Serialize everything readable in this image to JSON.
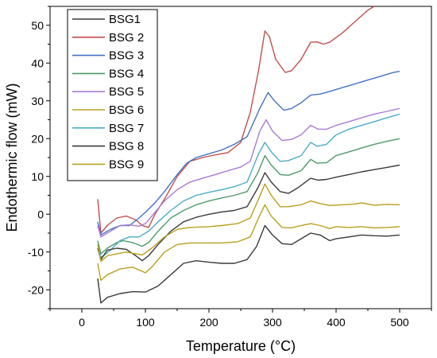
{
  "chart_data": {
    "type": "line",
    "title": "",
    "xlabel": "Temperature (°C)",
    "ylabel": "Endothermic flow (mW)",
    "xlim": [
      -50,
      550
    ],
    "ylim": [
      -25,
      55
    ],
    "xticks": [
      0,
      100,
      200,
      300,
      400,
      500
    ],
    "yticks": [
      -20,
      -10,
      0,
      10,
      20,
      30,
      40,
      50
    ],
    "grid": false,
    "legend_position": "top-left",
    "series": [
      {
        "name": "BSG1",
        "color": "#3a3a3a",
        "points": [
          [
            25,
            -17
          ],
          [
            30,
            -23.5
          ],
          [
            40,
            -22
          ],
          [
            60,
            -21
          ],
          [
            80,
            -20.5
          ],
          [
            100,
            -20.6
          ],
          [
            120,
            -19
          ],
          [
            140,
            -16
          ],
          [
            160,
            -13
          ],
          [
            180,
            -12.3
          ],
          [
            200,
            -12.7
          ],
          [
            220,
            -13
          ],
          [
            240,
            -13
          ],
          [
            260,
            -12
          ],
          [
            275,
            -8.5
          ],
          [
            288,
            -3
          ],
          [
            300,
            -5.5
          ],
          [
            315,
            -7.8
          ],
          [
            330,
            -8
          ],
          [
            345,
            -6.5
          ],
          [
            360,
            -5
          ],
          [
            375,
            -5.5
          ],
          [
            390,
            -7
          ],
          [
            400,
            -6.5
          ],
          [
            420,
            -6
          ],
          [
            440,
            -5.5
          ],
          [
            460,
            -5.7
          ],
          [
            480,
            -5.8
          ],
          [
            500,
            -5.5
          ]
        ]
      },
      {
        "name": "BSG 2",
        "color": "#c0504d",
        "points": [
          [
            25,
            4
          ],
          [
            30,
            -5
          ],
          [
            40,
            -3
          ],
          [
            55,
            -1
          ],
          [
            70,
            -0.5
          ],
          [
            85,
            -1.5
          ],
          [
            95,
            -3
          ],
          [
            105,
            -3.5
          ],
          [
            115,
            0
          ],
          [
            130,
            4
          ],
          [
            150,
            10
          ],
          [
            170,
            14
          ],
          [
            190,
            15
          ],
          [
            210,
            15.7
          ],
          [
            230,
            16.3
          ],
          [
            250,
            19
          ],
          [
            265,
            27
          ],
          [
            278,
            38
          ],
          [
            288,
            48.5
          ],
          [
            295,
            47
          ],
          [
            305,
            41
          ],
          [
            320,
            37.5
          ],
          [
            330,
            38
          ],
          [
            345,
            41
          ],
          [
            360,
            45.5
          ],
          [
            370,
            45.6
          ],
          [
            380,
            45
          ],
          [
            390,
            45.5
          ],
          [
            410,
            48
          ],
          [
            430,
            51
          ],
          [
            450,
            54
          ],
          [
            460,
            55
          ]
        ]
      },
      {
        "name": "BSG 3",
        "color": "#4472c4",
        "points": [
          [
            25,
            -2
          ],
          [
            30,
            -5.5
          ],
          [
            45,
            -4
          ],
          [
            60,
            -3
          ],
          [
            75,
            -3
          ],
          [
            90,
            -1
          ],
          [
            100,
            0.5
          ],
          [
            115,
            3
          ],
          [
            130,
            6
          ],
          [
            150,
            10.5
          ],
          [
            165,
            13.5
          ],
          [
            180,
            15
          ],
          [
            200,
            16
          ],
          [
            220,
            17
          ],
          [
            240,
            18.5
          ],
          [
            260,
            20.5
          ],
          [
            280,
            28
          ],
          [
            293,
            32.2
          ],
          [
            303,
            30
          ],
          [
            318,
            27.5
          ],
          [
            330,
            28
          ],
          [
            345,
            29.5
          ],
          [
            360,
            31.5
          ],
          [
            375,
            31.8
          ],
          [
            390,
            32.5
          ],
          [
            410,
            33.5
          ],
          [
            430,
            34.5
          ],
          [
            450,
            35.5
          ],
          [
            470,
            36.5
          ],
          [
            490,
            37.5
          ],
          [
            500,
            37.8
          ]
        ]
      },
      {
        "name": "BSG 4",
        "color": "#4e9a6a",
        "points": [
          [
            25,
            -7
          ],
          [
            30,
            -10.5
          ],
          [
            40,
            -9
          ],
          [
            55,
            -7.5
          ],
          [
            65,
            -7
          ],
          [
            80,
            -7.5
          ],
          [
            95,
            -8.5
          ],
          [
            105,
            -7.5
          ],
          [
            120,
            -4.5
          ],
          [
            140,
            -1
          ],
          [
            160,
            1
          ],
          [
            180,
            2.5
          ],
          [
            200,
            3.5
          ],
          [
            220,
            4.3
          ],
          [
            240,
            5
          ],
          [
            260,
            6
          ],
          [
            277,
            11
          ],
          [
            288,
            15.5
          ],
          [
            298,
            13
          ],
          [
            312,
            10.5
          ],
          [
            325,
            10.3
          ],
          [
            345,
            11.5
          ],
          [
            360,
            14.5
          ],
          [
            370,
            13.5
          ],
          [
            385,
            13.6
          ],
          [
            400,
            15.5
          ],
          [
            420,
            16.5
          ],
          [
            440,
            17.5
          ],
          [
            460,
            18.5
          ],
          [
            480,
            19.3
          ],
          [
            500,
            20
          ]
        ]
      },
      {
        "name": "BSG 5",
        "color": "#a97bd6",
        "points": [
          [
            25,
            -3
          ],
          [
            30,
            -6
          ],
          [
            45,
            -4.5
          ],
          [
            60,
            -3
          ],
          [
            75,
            -2.8
          ],
          [
            90,
            -3.2
          ],
          [
            100,
            -2.5
          ],
          [
            115,
            0.5
          ],
          [
            130,
            3.5
          ],
          [
            150,
            6.5
          ],
          [
            170,
            8.5
          ],
          [
            190,
            9.5
          ],
          [
            210,
            10.5
          ],
          [
            230,
            11.5
          ],
          [
            250,
            12.5
          ],
          [
            265,
            14
          ],
          [
            280,
            22
          ],
          [
            290,
            25
          ],
          [
            300,
            22
          ],
          [
            315,
            19.5
          ],
          [
            330,
            19.8
          ],
          [
            345,
            21
          ],
          [
            360,
            23.5
          ],
          [
            372,
            22.5
          ],
          [
            385,
            22.5
          ],
          [
            400,
            23.5
          ],
          [
            420,
            24.5
          ],
          [
            440,
            25.5
          ],
          [
            460,
            26.5
          ],
          [
            480,
            27.2
          ],
          [
            500,
            28
          ]
        ]
      },
      {
        "name": "BSG 6",
        "color": "#b8a020",
        "points": [
          [
            25,
            -13
          ],
          [
            30,
            -17.5
          ],
          [
            40,
            -16
          ],
          [
            60,
            -14.5
          ],
          [
            80,
            -14
          ],
          [
            100,
            -15.5
          ],
          [
            110,
            -14
          ],
          [
            130,
            -10
          ],
          [
            150,
            -8
          ],
          [
            170,
            -7.6
          ],
          [
            200,
            -7.6
          ],
          [
            220,
            -7.6
          ],
          [
            245,
            -7.3
          ],
          [
            265,
            -6
          ],
          [
            278,
            -1
          ],
          [
            288,
            2.5
          ],
          [
            298,
            -0.5
          ],
          [
            315,
            -3.5
          ],
          [
            330,
            -3.6
          ],
          [
            345,
            -3
          ],
          [
            360,
            -2.5
          ],
          [
            375,
            -3
          ],
          [
            390,
            -3.8
          ],
          [
            400,
            -3.3
          ],
          [
            420,
            -3.5
          ],
          [
            440,
            -3.3
          ],
          [
            460,
            -3.6
          ],
          [
            480,
            -3.5
          ],
          [
            500,
            -3.3
          ]
        ]
      },
      {
        "name": "BSG 7",
        "color": "#4bacc6",
        "points": [
          [
            25,
            -8
          ],
          [
            30,
            -11.5
          ],
          [
            45,
            -9.5
          ],
          [
            60,
            -7
          ],
          [
            75,
            -6
          ],
          [
            90,
            -6
          ],
          [
            105,
            -4.5
          ],
          [
            120,
            -2
          ],
          [
            140,
            1
          ],
          [
            160,
            3.5
          ],
          [
            180,
            5
          ],
          [
            200,
            5.8
          ],
          [
            220,
            6.5
          ],
          [
            240,
            7.3
          ],
          [
            260,
            8.5
          ],
          [
            278,
            16
          ],
          [
            288,
            19
          ],
          [
            298,
            16.5
          ],
          [
            312,
            14
          ],
          [
            325,
            14.2
          ],
          [
            345,
            15.5
          ],
          [
            360,
            19
          ],
          [
            370,
            18
          ],
          [
            385,
            18.5
          ],
          [
            400,
            21
          ],
          [
            420,
            22.5
          ],
          [
            440,
            23.5
          ],
          [
            460,
            24.5
          ],
          [
            480,
            25.5
          ],
          [
            500,
            26.5
          ]
        ]
      },
      {
        "name": "BSG 8",
        "color": "#3a3a3a",
        "points": [
          [
            25,
            -9
          ],
          [
            30,
            -12
          ],
          [
            40,
            -9.5
          ],
          [
            55,
            -9
          ],
          [
            70,
            -9.3
          ],
          [
            85,
            -11
          ],
          [
            95,
            -12.3
          ],
          [
            105,
            -11
          ],
          [
            120,
            -8
          ],
          [
            140,
            -4.5
          ],
          [
            160,
            -2
          ],
          [
            180,
            -0.8
          ],
          [
            200,
            0
          ],
          [
            220,
            0.6
          ],
          [
            240,
            1
          ],
          [
            260,
            2
          ],
          [
            277,
            7
          ],
          [
            288,
            11
          ],
          [
            298,
            8.5
          ],
          [
            312,
            6
          ],
          [
            325,
            5.5
          ],
          [
            340,
            7
          ],
          [
            360,
            9.5
          ],
          [
            372,
            9
          ],
          [
            385,
            9.2
          ],
          [
            400,
            9.8
          ],
          [
            420,
            10.5
          ],
          [
            440,
            11.2
          ],
          [
            460,
            11.8
          ],
          [
            480,
            12.4
          ],
          [
            500,
            13
          ]
        ]
      },
      {
        "name": "BSG 9",
        "color": "#b8a020",
        "points": [
          [
            25,
            -8
          ],
          [
            30,
            -12.5
          ],
          [
            40,
            -11
          ],
          [
            55,
            -10.5
          ],
          [
            70,
            -10
          ],
          [
            85,
            -10.5
          ],
          [
            95,
            -10.8
          ],
          [
            110,
            -9
          ],
          [
            130,
            -6
          ],
          [
            150,
            -4
          ],
          [
            170,
            -3.5
          ],
          [
            200,
            -3.3
          ],
          [
            220,
            -3
          ],
          [
            245,
            -2.5
          ],
          [
            265,
            -1
          ],
          [
            278,
            4
          ],
          [
            288,
            8
          ],
          [
            298,
            5
          ],
          [
            312,
            2
          ],
          [
            325,
            2
          ],
          [
            345,
            2.5
          ],
          [
            360,
            3.5
          ],
          [
            375,
            2.8
          ],
          [
            390,
            2.3
          ],
          [
            410,
            2.5
          ],
          [
            430,
            2.7
          ],
          [
            440,
            3
          ],
          [
            460,
            2.4
          ],
          [
            480,
            2.6
          ],
          [
            500,
            2.5
          ]
        ]
      }
    ]
  }
}
